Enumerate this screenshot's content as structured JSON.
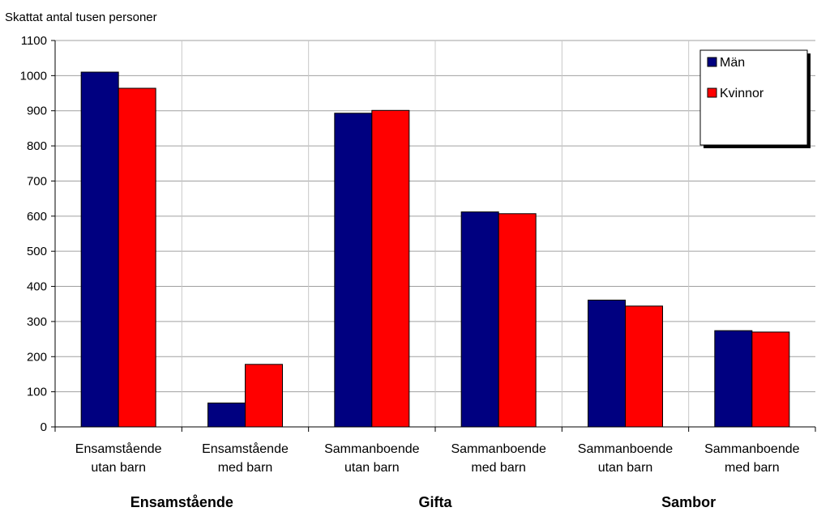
{
  "chart_data": {
    "type": "bar",
    "ylabel": "Skattat antal tusen personer",
    "ylim": [
      0,
      1100
    ],
    "yticks": [
      0,
      100,
      200,
      300,
      400,
      500,
      600,
      700,
      800,
      900,
      1000,
      1100
    ],
    "grid": true,
    "legend_position": "top-right",
    "categories": [
      [
        "Ensamstående",
        "utan barn"
      ],
      [
        "Ensamstående",
        "med barn"
      ],
      [
        "Sammanboende",
        "utan barn"
      ],
      [
        "Sammanboende",
        "med barn"
      ],
      [
        "Sammanboende",
        "utan barn"
      ],
      [
        "Sammanboende",
        "med barn"
      ]
    ],
    "groups": [
      {
        "label": "Ensamstående",
        "categories": [
          0,
          1
        ]
      },
      {
        "label": "Gifta",
        "categories": [
          2,
          3
        ]
      },
      {
        "label": "Sambor",
        "categories": [
          4,
          5
        ]
      }
    ],
    "series": [
      {
        "name": "Män",
        "color": "#000080",
        "values": [
          1010,
          68,
          893,
          612,
          361,
          274
        ]
      },
      {
        "name": "Kvinnor",
        "color": "#ff0000",
        "values": [
          964,
          178,
          901,
          607,
          344,
          270
        ]
      }
    ]
  }
}
